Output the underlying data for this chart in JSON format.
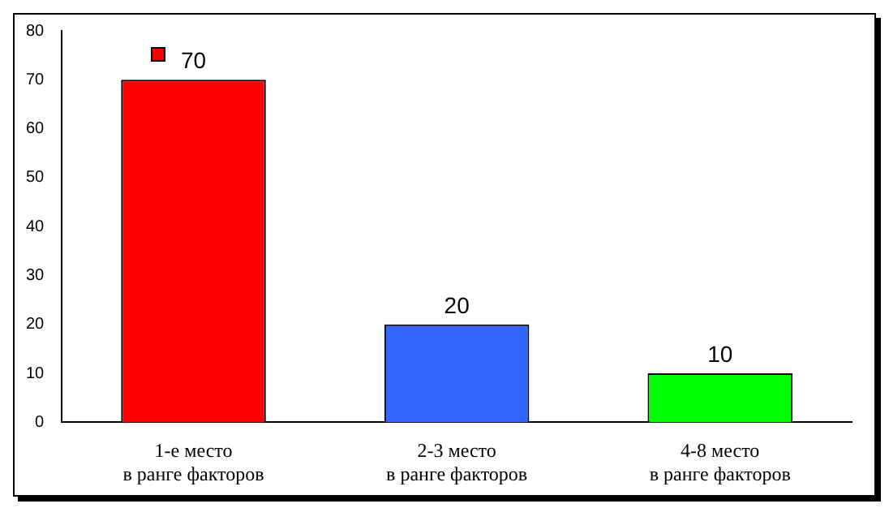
{
  "chart_data": {
    "type": "bar",
    "categories": [
      "1-е место\nв ранге факторов",
      "2-3 место\nв ранге факторов",
      "4-8 место\nв ранге факторов"
    ],
    "values": [
      70,
      20,
      10
    ],
    "colors": [
      "#ff0000",
      "#3366ff",
      "#00ff00"
    ],
    "ylim": [
      0,
      80
    ],
    "yticks": [
      0,
      10,
      20,
      30,
      40,
      50,
      60,
      70,
      80
    ],
    "grid": false,
    "legend": false,
    "data_labels": true
  }
}
